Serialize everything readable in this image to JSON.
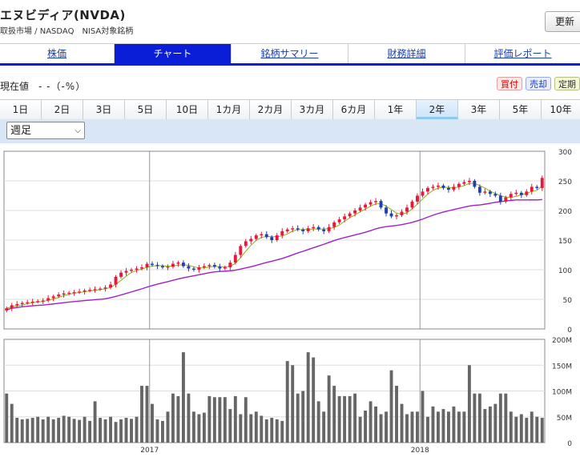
{
  "header": {
    "title": "エヌビディア(NVDA)",
    "subtitle": "取扱市場 / NASDAQ　NISA対象銘柄",
    "update_label": "更新"
  },
  "tabs": [
    {
      "label": "株価",
      "active": false
    },
    {
      "label": "チャート",
      "active": true
    },
    {
      "label": "銘柄サマリー",
      "active": false
    },
    {
      "label": "財務詳細",
      "active": false
    },
    {
      "label": "評価レポート",
      "active": false
    }
  ],
  "price": {
    "label": "現在値",
    "value": "- -（-%）"
  },
  "actions": {
    "buy": "買付",
    "sell": "売却",
    "fixed": "定期"
  },
  "periods": [
    {
      "label": "1日",
      "active": false
    },
    {
      "label": "2日",
      "active": false
    },
    {
      "label": "3日",
      "active": false
    },
    {
      "label": "5日",
      "active": false
    },
    {
      "label": "10日",
      "active": false
    },
    {
      "label": "1カ月",
      "active": false
    },
    {
      "label": "2カ月",
      "active": false
    },
    {
      "label": "3カ月",
      "active": false
    },
    {
      "label": "6カ月",
      "active": false
    },
    {
      "label": "1年",
      "active": false
    },
    {
      "label": "2年",
      "active": true
    },
    {
      "label": "3年",
      "active": false
    },
    {
      "label": "5年",
      "active": false
    },
    {
      "label": "10年",
      "active": false
    }
  ],
  "interval_select": {
    "value": "週足"
  },
  "colors": {
    "up": "#e8183c",
    "down": "#2040b0",
    "ma_short": "#90b010",
    "ma_long": "#a020c8",
    "volume": "#666666",
    "tab_active": "#0a1ed8"
  },
  "chart_data": [
    {
      "type": "candlestick",
      "price_axis": {
        "ylim": [
          0,
          300
        ],
        "ticks": [
          "0",
          "50",
          "100",
          "150",
          "200",
          "250",
          "300"
        ]
      },
      "x_year_labels": [
        {
          "label": "2017",
          "index": 28
        },
        {
          "label": "2018",
          "index": 80
        }
      ],
      "weeks": 104,
      "closes": [
        35,
        40,
        42,
        44,
        45,
        46,
        47,
        48,
        52,
        55,
        58,
        60,
        61,
        62,
        63,
        65,
        66,
        67,
        68,
        70,
        75,
        88,
        95,
        98,
        100,
        102,
        104,
        110,
        108,
        106,
        104,
        105,
        110,
        112,
        106,
        102,
        100,
        104,
        106,
        108,
        105,
        102,
        104,
        112,
        125,
        140,
        148,
        152,
        158,
        160,
        155,
        150,
        158,
        165,
        168,
        170,
        168,
        165,
        170,
        172,
        168,
        165,
        172,
        180,
        185,
        190,
        195,
        200,
        205,
        210,
        214,
        216,
        205,
        195,
        190,
        192,
        198,
        205,
        215,
        225,
        232,
        238,
        240,
        242,
        238,
        235,
        240,
        245,
        248,
        250,
        240,
        230,
        232,
        228,
        225,
        215,
        222,
        228,
        230,
        226,
        232,
        240,
        238,
        255
      ],
      "ma_short_summary": "yellow-green short moving average tracks close",
      "ma_long_summary": "purple long moving average from ~32 to ~228"
    },
    {
      "type": "bar",
      "volume_axis": {
        "ylim": [
          0,
          200
        ],
        "unit": "M",
        "ticks": [
          "0",
          "50M",
          "100M",
          "150M",
          "200M"
        ]
      },
      "volumes": [
        95,
        75,
        48,
        45,
        46,
        48,
        50,
        45,
        50,
        45,
        48,
        52,
        50,
        46,
        44,
        50,
        42,
        80,
        48,
        45,
        50,
        40,
        45,
        48,
        46,
        50,
        110,
        110,
        75,
        45,
        42,
        60,
        95,
        90,
        175,
        95,
        60,
        55,
        58,
        90,
        88,
        88,
        88,
        65,
        90,
        55,
        88,
        55,
        60,
        52,
        45,
        48,
        45,
        42,
        158,
        150,
        95,
        100,
        175,
        165,
        80,
        60,
        130,
        110,
        90,
        90,
        90,
        95,
        50,
        62,
        80,
        70,
        55,
        60,
        140,
        110,
        75,
        55,
        60,
        60,
        100,
        50,
        70,
        60,
        65,
        60,
        70,
        60,
        60,
        150,
        95,
        95,
        65,
        70,
        75,
        95,
        95,
        60,
        50,
        55,
        48,
        60,
        50,
        48
      ]
    }
  ]
}
